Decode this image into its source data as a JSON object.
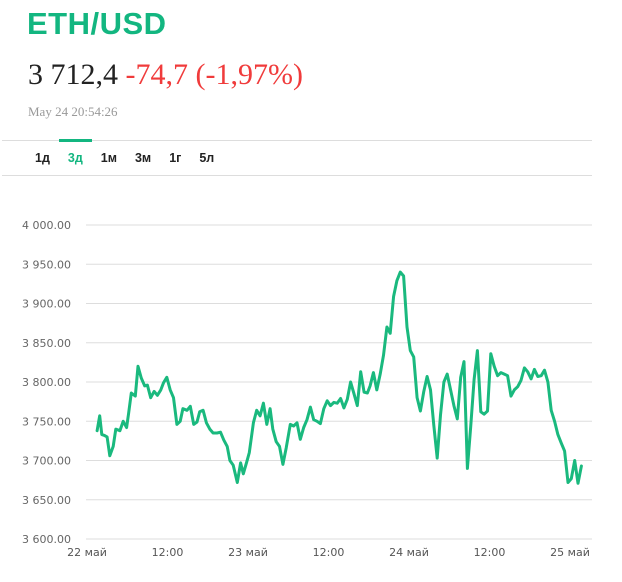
{
  "header": {
    "title": "ETH/USD",
    "price": "3 712,4",
    "change": "-74,7 (-1,97%)",
    "timestamp": "May 24 20:54:26"
  },
  "tabs": [
    {
      "label": "1д",
      "active": false
    },
    {
      "label": "3д",
      "active": true
    },
    {
      "label": "1м",
      "active": false
    },
    {
      "label": "3м",
      "active": false
    },
    {
      "label": "1г",
      "active": false
    },
    {
      "label": "5л",
      "active": false
    }
  ],
  "colors": {
    "accent": "#13b680",
    "negative": "#f03b3b",
    "line": "#1ab97e",
    "grid": "#dddddd"
  },
  "chart_data": {
    "type": "line",
    "title": "ETH/USD",
    "xlabel": "",
    "ylabel": "",
    "ylim": [
      3600,
      4000
    ],
    "grid": true,
    "legend": "none",
    "y_ticks": [
      "4 000.00",
      "3 950.00",
      "3 900.00",
      "3 850.00",
      "3 800.00",
      "3 750.00",
      "3 700.00",
      "3 650.00",
      "3 600.00"
    ],
    "y_tick_values": [
      4000,
      3950,
      3900,
      3850,
      3800,
      3750,
      3700,
      3650,
      3600
    ],
    "x_ticks": [
      "22 май",
      "12:00",
      "23 май",
      "12:00",
      "24 май",
      "12:00",
      "25 май"
    ],
    "x_tick_hours": [
      0,
      12,
      24,
      36,
      48,
      60,
      72
    ],
    "series": [
      {
        "name": "ETH/USD",
        "x_hours": [
          1.5,
          1.9,
          2.2,
          2.6,
          3.0,
          3.4,
          3.9,
          4.3,
          4.9,
          5.4,
          5.9,
          6.2,
          6.6,
          7.2,
          7.6,
          8.1,
          8.6,
          9.0,
          9.5,
          10.0,
          10.5,
          11.0,
          11.4,
          11.9,
          12.4,
          12.9,
          13.4,
          13.9,
          14.3,
          14.9,
          15.4,
          15.9,
          16.4,
          16.8,
          17.3,
          17.8,
          18.3,
          18.8,
          19.4,
          19.9,
          20.4,
          20.9,
          21.3,
          21.8,
          22.4,
          22.9,
          23.3,
          23.8,
          24.2,
          24.8,
          25.3,
          25.8,
          26.3,
          26.8,
          27.3,
          27.7,
          28.2,
          28.7,
          29.2,
          29.7,
          30.3,
          30.8,
          31.3,
          31.8,
          32.3,
          32.8,
          33.3,
          33.8,
          34.3,
          34.8,
          35.3,
          35.8,
          36.3,
          36.8,
          37.3,
          37.8,
          38.3,
          38.8,
          39.3,
          39.8,
          40.3,
          40.8,
          41.3,
          41.8,
          42.2,
          42.7,
          43.2,
          43.7,
          44.2,
          44.7,
          45.2,
          45.7,
          46.2,
          46.7,
          47.2,
          47.7,
          48.2,
          48.7,
          49.2,
          49.7,
          50.2,
          50.7,
          51.2,
          51.7,
          52.2,
          52.7,
          53.2,
          53.7,
          54.2,
          54.7,
          55.2,
          55.7,
          56.2,
          56.7,
          57.2,
          57.7,
          58.2,
          58.7,
          59.2,
          59.7,
          60.2,
          60.7,
          61.2,
          61.7,
          62.2,
          62.7,
          63.2,
          63.7,
          64.2,
          64.7,
          65.2,
          65.7,
          66.2,
          66.7,
          67.2,
          67.7,
          68.2,
          68.7,
          69.2,
          69.7,
          70.2,
          70.7,
          71.2,
          71.7,
          72.2,
          72.7,
          73.2,
          73.7
        ],
        "values": [
          3738,
          3757,
          3733,
          3732,
          3730,
          3706,
          3718,
          3740,
          3738,
          3750,
          3742,
          3760,
          3786,
          3782,
          3820,
          3805,
          3795,
          3796,
          3780,
          3788,
          3783,
          3790,
          3799,
          3806,
          3790,
          3780,
          3746,
          3750,
          3766,
          3764,
          3769,
          3746,
          3749,
          3762,
          3764,
          3748,
          3740,
          3735,
          3735,
          3736,
          3726,
          3718,
          3700,
          3694,
          3672,
          3697,
          3683,
          3698,
          3710,
          3748,
          3764,
          3757,
          3773,
          3746,
          3766,
          3740,
          3724,
          3718,
          3695,
          3716,
          3746,
          3744,
          3748,
          3727,
          3742,
          3752,
          3768,
          3752,
          3750,
          3747,
          3766,
          3776,
          3770,
          3774,
          3773,
          3779,
          3767,
          3778,
          3800,
          3785,
          3770,
          3813,
          3787,
          3786,
          3795,
          3812,
          3790,
          3810,
          3834,
          3870,
          3862,
          3909,
          3929,
          3940,
          3935,
          3870,
          3840,
          3832,
          3780,
          3763,
          3788,
          3807,
          3790,
          3745,
          3703,
          3758,
          3800,
          3810,
          3790,
          3770,
          3753,
          3806,
          3826,
          3690,
          3743,
          3803,
          3840,
          3762,
          3759,
          3763,
          3836,
          3820,
          3808,
          3812,
          3810,
          3808,
          3782,
          3790,
          3794,
          3802,
          3818,
          3813,
          3804,
          3816,
          3807,
          3808,
          3815,
          3800,
          3764,
          3750,
          3733,
          3722,
          3712,
          3672,
          3677,
          3700,
          3671,
          3693,
          3711,
          3714,
          3712
        ]
      }
    ]
  }
}
